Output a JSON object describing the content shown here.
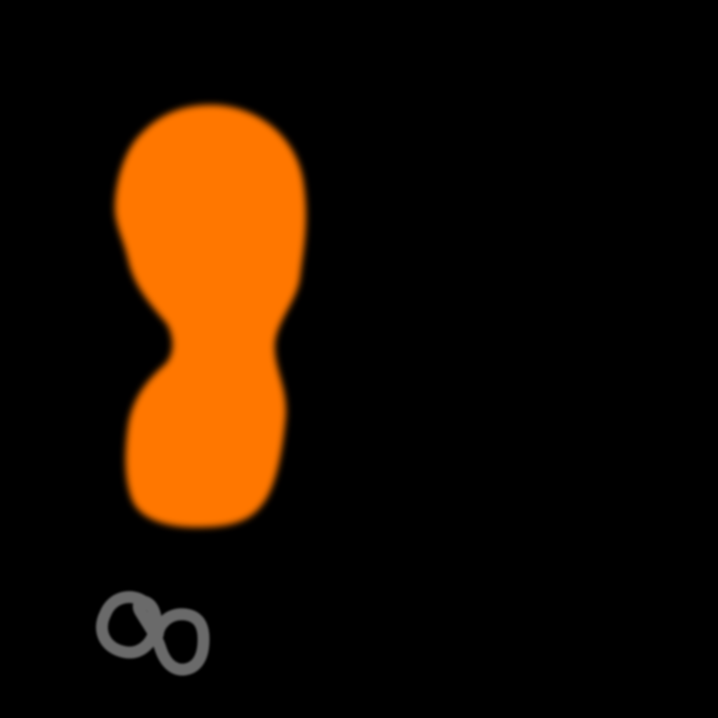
{
  "canvas": {
    "background_color": "#000000"
  },
  "shapes": {
    "blob": {
      "description_icon": "peanut-blob-icon",
      "fill_color": "#FF7700"
    },
    "glyph": {
      "description_icon": "infinity-scribble-icon",
      "stroke_color": "#6B6B6B"
    }
  }
}
